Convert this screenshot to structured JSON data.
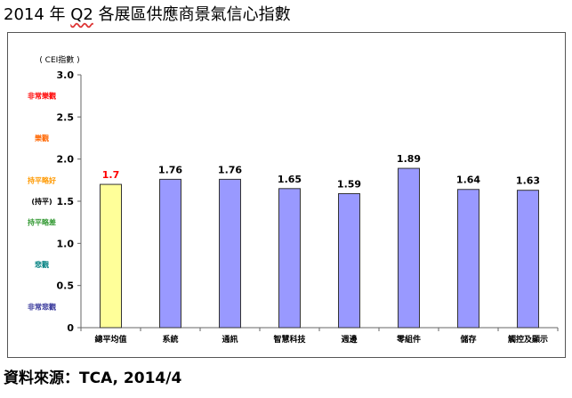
{
  "title_prefix": "2014 年 ",
  "title_q": "Q2",
  "title_rest": " 各展區供應商景氣信心指數",
  "source": "資料來源：TCA, 2014/4",
  "chart_data": {
    "type": "bar",
    "ylabel": "( CEI指數 )",
    "ylim": [
      0,
      3.0
    ],
    "yticks": [
      "3.0",
      "2.5",
      "2.0",
      "1.5",
      "1.0",
      "0.5",
      "0"
    ],
    "categories": [
      "總平均值",
      "系統",
      "通訊",
      "智慧科技",
      "週邊",
      "零組件",
      "儲存",
      "觸控及顯示"
    ],
    "values": [
      1.7,
      1.76,
      1.76,
      1.65,
      1.59,
      1.89,
      1.64,
      1.63
    ],
    "value_labels": [
      "1.7",
      "1.76",
      "1.76",
      "1.65",
      "1.59",
      "1.89",
      "1.64",
      "1.63"
    ],
    "bar_colors": [
      "#ffff99",
      "#9999ff",
      "#9999ff",
      "#9999ff",
      "#9999ff",
      "#9999ff",
      "#9999ff",
      "#9999ff"
    ],
    "value_label_colors": [
      "#ff0000",
      "#000000",
      "#000000",
      "#000000",
      "#000000",
      "#000000",
      "#000000",
      "#000000"
    ],
    "zones": [
      {
        "label": "非常樂觀",
        "y": 2.75,
        "color": "#ff0000"
      },
      {
        "label": "樂觀",
        "y": 2.25,
        "color": "#ff6600"
      },
      {
        "label": "持平略好",
        "y": 1.75,
        "color": "#ff9900"
      },
      {
        "label": "(持平)",
        "y": 1.5,
        "color": "#000000"
      },
      {
        "label": "持平略差",
        "y": 1.25,
        "color": "#339933"
      },
      {
        "label": "悲觀",
        "y": 0.75,
        "color": "#008080"
      },
      {
        "label": "非常悲觀",
        "y": 0.25,
        "color": "#333399"
      }
    ],
    "grid": false,
    "legend": "none"
  }
}
